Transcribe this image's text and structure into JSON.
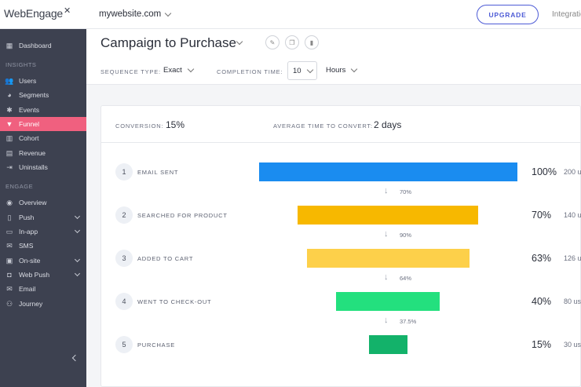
{
  "topbar": {
    "logo": "WebEngage",
    "site": "mywebsite.com",
    "upgrade": "UPGRADE",
    "integrations": "Integratio"
  },
  "sidebar": {
    "dashboard": "Dashboard",
    "insights_label": "INSIGHTS",
    "insights": [
      "Users",
      "Segments",
      "Events",
      "Funnel",
      "Cohort",
      "Revenue",
      "Uninstalls"
    ],
    "engage_label": "ENGAGE",
    "engage": [
      "Overview",
      "Push",
      "In-app",
      "SMS",
      "On-site",
      "Web Push",
      "Email",
      "Journey"
    ]
  },
  "header": {
    "title": "Campaign to Purchase",
    "sequence_type_label": "SEQUENCE TYPE:",
    "sequence_type_value": "Exact",
    "completion_time_label": "COMPLETION TIME:",
    "completion_time_value": "10",
    "completion_unit": "Hours"
  },
  "summary": {
    "conversion_label": "CONVERSION:",
    "conversion_value": "15%",
    "avg_time_label": "AVERAGE TIME TO CONVERT:",
    "avg_time_value": "2 days"
  },
  "funnel": {
    "steps": [
      {
        "num": "1",
        "label": "EMAIL SENT",
        "pct": "100%",
        "users": "200 u",
        "fraction": 1.0,
        "color": "#1a8cf0"
      },
      {
        "num": "2",
        "label": "SEARCHED FOR PRODUCT",
        "pct": "70%",
        "users": "140 u",
        "fraction": 0.7,
        "color": "#f7b800"
      },
      {
        "num": "3",
        "label": "ADDED TO CART",
        "pct": "63%",
        "users": "126 u",
        "fraction": 0.63,
        "color": "#fdd04a"
      },
      {
        "num": "4",
        "label": "WENT TO CHECK-OUT",
        "pct": "40%",
        "users": "80 us",
        "fraction": 0.4,
        "color": "#23e07e"
      },
      {
        "num": "5",
        "label": "PURCHASE",
        "pct": "15%",
        "users": "30 us",
        "fraction": 0.15,
        "color": "#13b26a"
      }
    ],
    "drops": [
      "70%",
      "90%",
      "64%",
      "37.5%"
    ]
  }
}
